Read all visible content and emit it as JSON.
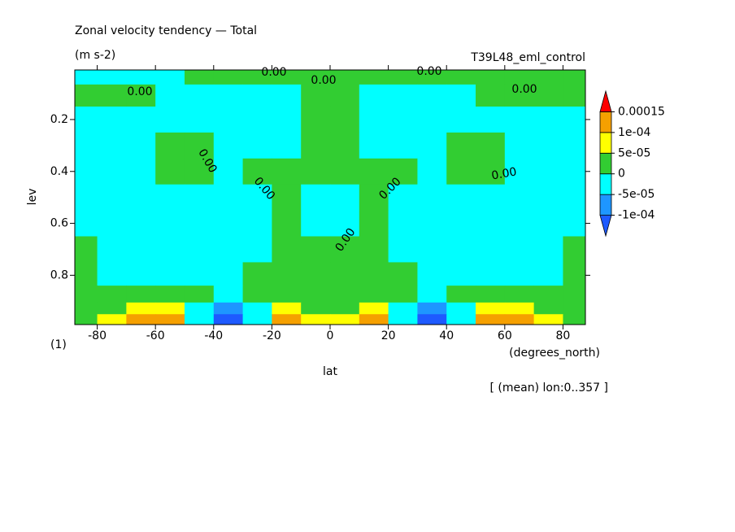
{
  "chart_data": {
    "type": "contour",
    "title": "Zonal velocity tendency — Total",
    "subtitle": "(m s-2)",
    "run_name": "T39L48_eml_control",
    "xlabel": "lat",
    "xunits": "(degrees_north)",
    "ylabel": "lev",
    "yunits": "(1)",
    "note": "[ (mean) lon:0..357 ]",
    "contour_label": "0.00",
    "xlim": [
      -87.7,
      87.7
    ],
    "ylim": [
      0.99,
      0.009
    ],
    "xticks": [
      -80,
      -60,
      -40,
      -20,
      0,
      20,
      40,
      60,
      80
    ],
    "yticks": [
      0.2,
      0.4,
      0.6,
      0.8
    ],
    "levels": [
      {
        "value": -0.0001,
        "label": "-1e-04"
      },
      {
        "value": -5e-05,
        "label": "-5e-05"
      },
      0,
      {
        "value": 5e-05,
        "label": "5e-05"
      },
      {
        "value": 0.0001,
        "label": "1e-04"
      },
      0.00015
    ],
    "colors": [
      "#1e5aff",
      "#1e96ff",
      "#00ffff",
      "#32cd32",
      "#ffff00",
      "#f5a000",
      "#ff0000"
    ],
    "field": {
      "lat": [
        -85,
        -75,
        -65,
        -55,
        -45,
        -35,
        -25,
        -15,
        -5,
        5,
        15,
        25,
        35,
        45,
        55,
        65,
        75,
        85
      ],
      "lev": [
        0.03,
        0.1,
        0.2,
        0.3,
        0.4,
        0.5,
        0.6,
        0.7,
        0.8,
        0.88,
        0.93,
        0.97
      ],
      "values": [
        [
          -2e-05,
          -2e-05,
          -2e-05,
          -2e-05,
          2e-05,
          2e-05,
          2e-05,
          2e-05,
          2e-05,
          2e-05,
          2e-05,
          2e-05,
          2e-05,
          2e-05,
          2e-05,
          2e-05,
          2e-05,
          2e-05
        ],
        [
          2e-05,
          2e-05,
          2e-05,
          -2e-05,
          -2e-05,
          -2e-05,
          -2e-05,
          -2e-05,
          2e-05,
          2e-05,
          -2e-05,
          -2e-05,
          -2e-05,
          -2e-05,
          2e-05,
          2e-05,
          2e-05,
          2e-05
        ],
        [
          -2e-05,
          -2e-05,
          -2e-05,
          -2e-05,
          -2e-05,
          -2e-05,
          -2e-05,
          -2e-05,
          2e-05,
          2e-05,
          -2e-05,
          -2e-05,
          -2e-05,
          -2e-05,
          -2e-05,
          -2e-05,
          -2e-05,
          -2e-05
        ],
        [
          -2e-05,
          -2e-05,
          -2e-05,
          2e-05,
          2e-05,
          -2e-05,
          -2e-05,
          -2e-05,
          2e-05,
          2e-05,
          -2e-05,
          -2e-05,
          -2e-05,
          2e-05,
          2e-05,
          -2e-05,
          -2e-05,
          -2e-05
        ],
        [
          -2e-05,
          -2e-05,
          -2e-05,
          2e-05,
          2e-05,
          -2e-05,
          2e-05,
          2e-05,
          2e-05,
          2e-05,
          2e-05,
          2e-05,
          -2e-05,
          2e-05,
          2e-05,
          -2e-05,
          -2e-05,
          -2e-05
        ],
        [
          -2e-05,
          -2e-05,
          -2e-05,
          -2e-05,
          -2e-05,
          -2e-05,
          -2e-05,
          2e-05,
          -2e-05,
          -2e-05,
          2e-05,
          -2e-05,
          -2e-05,
          -2e-05,
          -2e-05,
          -2e-05,
          -2e-05,
          -2e-05
        ],
        [
          -2e-05,
          -2e-05,
          -2e-05,
          -2e-05,
          -2e-05,
          -2e-05,
          -2e-05,
          2e-05,
          -2e-05,
          -2e-05,
          2e-05,
          -2e-05,
          -2e-05,
          -2e-05,
          -2e-05,
          -2e-05,
          -2e-05,
          -2e-05
        ],
        [
          2e-05,
          -2e-05,
          -2e-05,
          -2e-05,
          -2e-05,
          -2e-05,
          -2e-05,
          2e-05,
          2e-05,
          2e-05,
          2e-05,
          -2e-05,
          -2e-05,
          -2e-05,
          -2e-05,
          -2e-05,
          -2e-05,
          2e-05
        ],
        [
          2e-05,
          -2e-05,
          -2e-05,
          -2e-05,
          -2e-05,
          -2e-05,
          2e-05,
          2e-05,
          2e-05,
          2e-05,
          2e-05,
          2e-05,
          -2e-05,
          -2e-05,
          -2e-05,
          -2e-05,
          -2e-05,
          2e-05
        ],
        [
          2e-05,
          2e-05,
          2e-05,
          2e-05,
          2e-05,
          -2e-05,
          2e-05,
          2e-05,
          2e-05,
          2e-05,
          2e-05,
          2e-05,
          -2e-05,
          2e-05,
          2e-05,
          2e-05,
          2e-05,
          2e-05
        ],
        [
          2e-05,
          3e-05,
          7e-05,
          7e-05,
          -2e-05,
          -7e-05,
          -2e-05,
          7e-05,
          2e-05,
          2e-05,
          7e-05,
          -2e-05,
          -7e-05,
          -2e-05,
          7e-05,
          7e-05,
          3e-05,
          2e-05
        ],
        [
          2e-05,
          7e-05,
          0.00012,
          0.00012,
          -2e-05,
          -0.00012,
          -2e-05,
          0.00012,
          7e-05,
          7e-05,
          0.00012,
          -2e-05,
          -0.00012,
          -2e-05,
          0.00012,
          0.00012,
          7e-05,
          2e-05
        ]
      ]
    }
  }
}
